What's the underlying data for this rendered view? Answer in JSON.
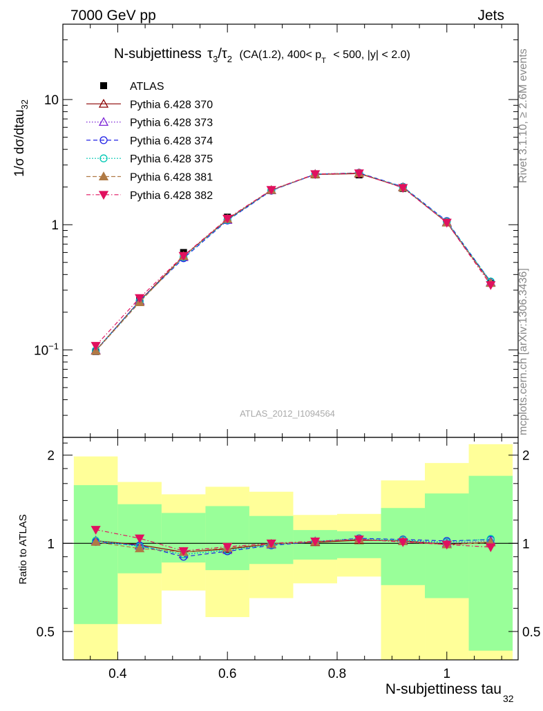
{
  "header": {
    "left": "7000 GeV pp",
    "right": "Jets",
    "plot_title_main": "N-subjettiness",
    "plot_title_tau": "τ",
    "plot_title_sub3": "3",
    "plot_title_slash": "/",
    "plot_title_sub2": "2",
    "plot_title_cut1": "(CA(1.2), 400< p",
    "plot_title_cut_sub": "T",
    "plot_title_cut2": "< 500, |y| < 2.0)"
  },
  "side": {
    "rivet": "Rivet 3.1.10, ≥ 2.6M events",
    "mcplots": "mcplots.cern.ch [arXiv:1306.3436]"
  },
  "watermark": "ATLAS_2012_I1094564",
  "axes": {
    "ylabel_main": "1/σ dσ/dtau",
    "ylabel_main_sub": "32",
    "ylabel_ratio": "Ratio to ATLAS",
    "xlabel": "N-subjettiness tau",
    "xlabel_sub": "32",
    "yticks_main": [
      {
        "value": 0.1,
        "label": "10",
        "sup": "−1"
      },
      {
        "value": 1,
        "label": "1",
        "sup": ""
      },
      {
        "value": 10,
        "label": "10",
        "sup": ""
      }
    ],
    "yticks_ratio": [
      {
        "value": 0.5,
        "label": "0.5"
      },
      {
        "value": 1,
        "label": "1"
      },
      {
        "value": 2,
        "label": "2"
      }
    ],
    "xticks": [
      {
        "value": 0.4,
        "label": "0.4"
      },
      {
        "value": 0.6,
        "label": "0.6"
      },
      {
        "value": 0.8,
        "label": "0.8"
      },
      {
        "value": 1,
        "label": "1"
      }
    ]
  },
  "chart_data": {
    "type": "scatter",
    "main": {
      "xlim": [
        0.3,
        1.13
      ],
      "ylim": [
        0.02,
        40
      ],
      "yscale": "log"
    },
    "ratio": {
      "ylim": [
        0.4,
        2.3
      ],
      "yscale": "log"
    },
    "bins": [
      {
        "lo": 0.32,
        "hi": 0.4,
        "inner": [
          0.53,
          1.58
        ],
        "outer": [
          0.3,
          1.98
        ]
      },
      {
        "lo": 0.4,
        "hi": 0.48,
        "inner": [
          0.79,
          1.36
        ],
        "outer": [
          0.53,
          1.62
        ]
      },
      {
        "lo": 0.48,
        "hi": 0.56,
        "inner": [
          0.86,
          1.27
        ],
        "outer": [
          0.69,
          1.47
        ]
      },
      {
        "lo": 0.56,
        "hi": 0.64,
        "inner": [
          0.81,
          1.34
        ],
        "outer": [
          0.56,
          1.56
        ]
      },
      {
        "lo": 0.64,
        "hi": 0.72,
        "inner": [
          0.85,
          1.24
        ],
        "outer": [
          0.65,
          1.5
        ]
      },
      {
        "lo": 0.72,
        "hi": 0.8,
        "inner": [
          0.88,
          1.11
        ],
        "outer": [
          0.73,
          1.25
        ]
      },
      {
        "lo": 0.8,
        "hi": 0.88,
        "inner": [
          0.89,
          1.1
        ],
        "outer": [
          0.77,
          1.26
        ]
      },
      {
        "lo": 0.88,
        "hi": 0.96,
        "inner": [
          0.72,
          1.32
        ],
        "outer": [
          0.3,
          1.64
        ]
      },
      {
        "lo": 0.96,
        "hi": 1.04,
        "inner": [
          0.65,
          1.48
        ],
        "outer": [
          0.3,
          1.88
        ]
      },
      {
        "lo": 1.04,
        "hi": 1.12,
        "inner": [
          0.43,
          1.7
        ],
        "outer": [
          0.3,
          2.18
        ]
      }
    ],
    "x": [
      0.36,
      0.44,
      0.52,
      0.6,
      0.68,
      0.76,
      0.84,
      0.92,
      1.0,
      1.08
    ],
    "data": {
      "name": "ATLAS",
      "values": [
        0.097,
        0.25,
        0.6,
        1.15,
        1.9,
        2.5,
        2.5,
        1.95,
        1.05,
        0.34
      ]
    },
    "series": [
      {
        "name": "Pythia 6.428 370",
        "color": "#8b0000",
        "marker": "triangle-up-open",
        "dash": "",
        "values": [
          0.099,
          0.247,
          0.56,
          1.1,
          1.89,
          2.52,
          2.56,
          1.99,
          1.04,
          0.343
        ]
      },
      {
        "name": "Pythia 6.428 373",
        "color": "#7b22d6",
        "marker": "triangle-up-open",
        "dash": "1.5,2.5",
        "values": [
          0.099,
          0.245,
          0.55,
          1.09,
          1.88,
          2.54,
          2.58,
          1.99,
          1.05,
          0.347
        ]
      },
      {
        "name": "Pythia 6.428 374",
        "color": "#1f1fe6",
        "marker": "circle-open",
        "dash": "6,4",
        "values": [
          0.098,
          0.246,
          0.54,
          1.08,
          1.87,
          2.53,
          2.6,
          2.01,
          1.07,
          0.35
        ]
      },
      {
        "name": "Pythia 6.428 375",
        "color": "#00c8b4",
        "marker": "circle-open",
        "dash": "2,2",
        "values": [
          0.099,
          0.244,
          0.55,
          1.09,
          1.88,
          2.54,
          2.59,
          2.0,
          1.06,
          0.352
        ]
      },
      {
        "name": "Pythia 6.428 381",
        "color": "#b07a45",
        "marker": "triangle-up-filled",
        "dash": "6,3",
        "values": [
          0.098,
          0.24,
          0.56,
          1.11,
          1.89,
          2.53,
          2.58,
          1.98,
          1.04,
          0.342
        ]
      },
      {
        "name": "Pythia 6.428 382",
        "color": "#e0115f",
        "marker": "triangle-down-filled",
        "dash": "6,3,1.5,3",
        "values": [
          0.108,
          0.26,
          0.565,
          1.12,
          1.9,
          2.54,
          2.58,
          1.97,
          1.04,
          0.33
        ]
      }
    ]
  }
}
